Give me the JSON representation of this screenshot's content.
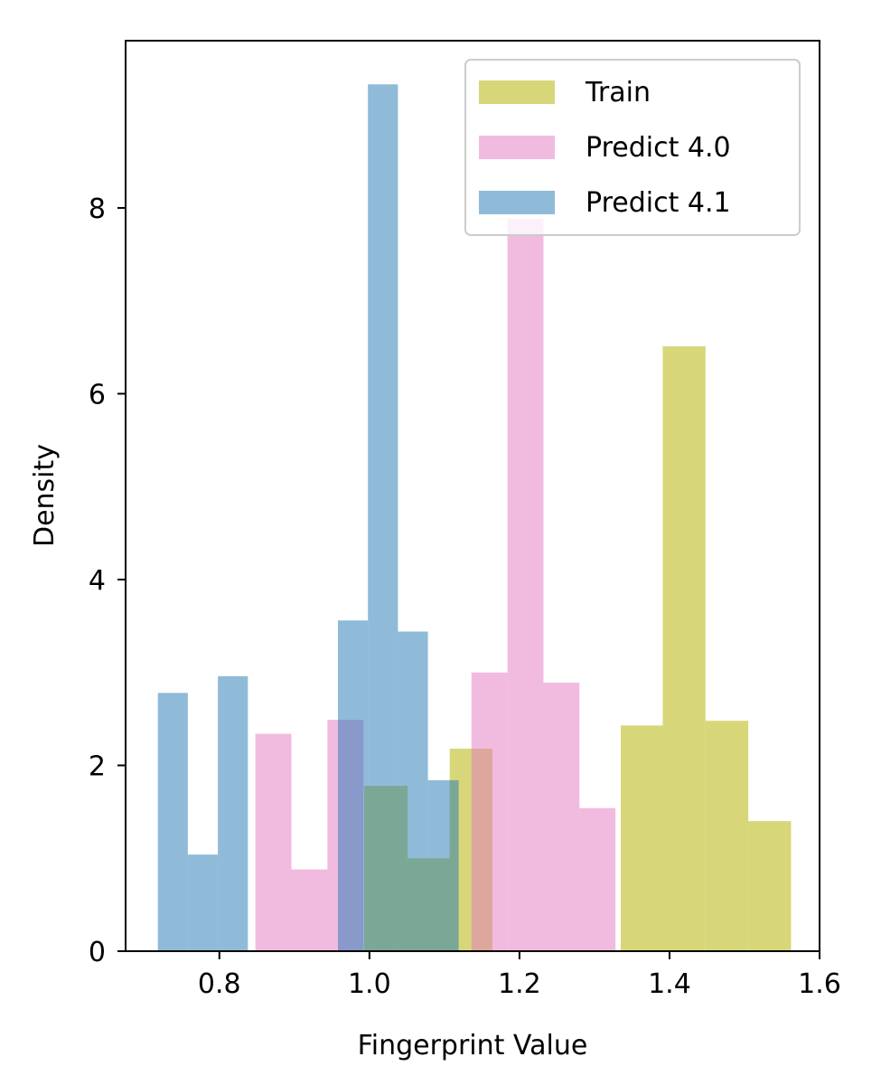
{
  "chart_data": {
    "type": "bar",
    "xlabel": "Fingerprint Value",
    "ylabel": "Density",
    "xlim": [
      0.675,
      1.6
    ],
    "ylim": [
      0,
      9.8
    ],
    "xticks": [
      0.8,
      1.0,
      1.2,
      1.4,
      1.6
    ],
    "xtick_labels": [
      "0.8",
      "1.0",
      "1.2",
      "1.4",
      "1.6"
    ],
    "yticks": [
      0,
      2,
      4,
      6,
      8
    ],
    "ytick_labels": [
      "0",
      "2",
      "4",
      "6",
      "8"
    ],
    "grid": false,
    "legend_position": "top-right",
    "series": [
      {
        "name": "Train",
        "color": "#bcbd22",
        "opacity": 0.6,
        "bin_edges": [
          0.993,
          1.051,
          1.107,
          1.164,
          1.222,
          1.278,
          1.335,
          1.391,
          1.448,
          1.505,
          1.562
        ],
        "values": [
          1.78,
          1.0,
          2.18,
          0,
          0,
          0,
          2.43,
          6.51,
          2.48,
          1.4
        ]
      },
      {
        "name": "Predict 4.0",
        "color": "#e377c2",
        "opacity": 0.5,
        "bin_edges": [
          0.848,
          0.896,
          0.944,
          0.992,
          1.04,
          1.088,
          1.136,
          1.184,
          1.232,
          1.28,
          1.328
        ],
        "values": [
          2.34,
          0.88,
          2.49,
          0,
          0,
          0,
          3.0,
          7.88,
          2.89,
          1.54
        ]
      },
      {
        "name": "Predict 4.1",
        "color": "#1f77b4",
        "opacity": 0.5,
        "bin_edges": [
          0.718,
          0.758,
          0.798,
          0.838,
          0.878,
          0.918,
          0.958,
          0.998,
          1.038,
          1.078,
          1.119
        ],
        "values": [
          2.78,
          1.04,
          2.96,
          0,
          0,
          0,
          3.56,
          9.33,
          3.44,
          1.84
        ]
      }
    ]
  }
}
